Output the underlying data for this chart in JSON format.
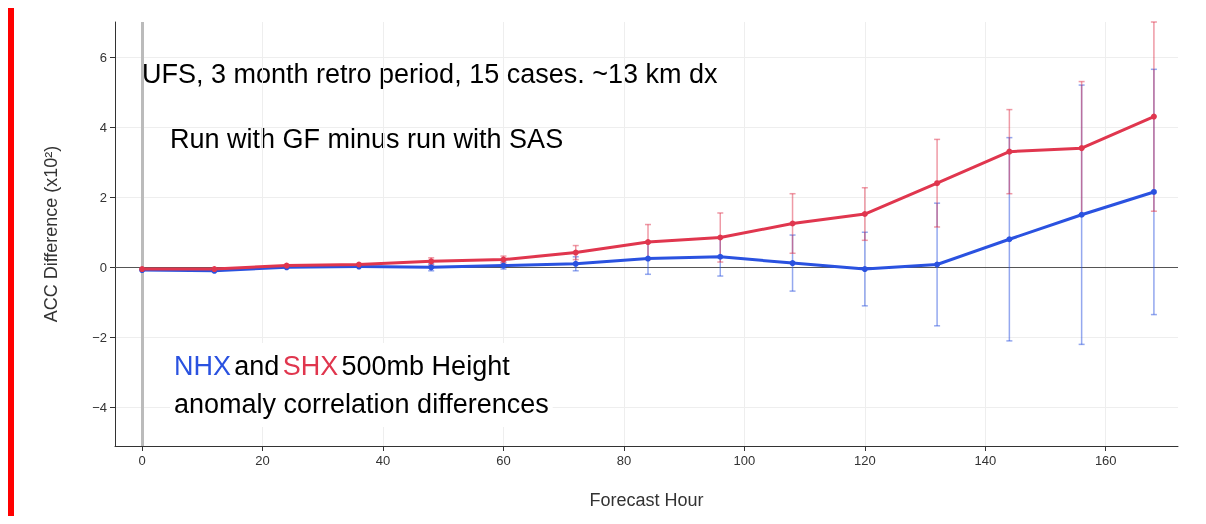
{
  "chart_data": {
    "type": "line",
    "xlabel": "Forecast Hour",
    "ylabel": "ACC Difference (x10²)",
    "x": [
      0,
      12,
      24,
      36,
      48,
      60,
      72,
      84,
      96,
      108,
      120,
      132,
      144,
      156,
      168
    ],
    "series": [
      {
        "name": "NHX",
        "color": "#2a52e0",
        "values": [
          -0.08,
          -0.1,
          0,
          0.02,
          0,
          0.05,
          0.1,
          0.25,
          0.3,
          0.12,
          -0.05,
          0.08,
          0.8,
          1.5,
          2.15
        ],
        "errors": [
          null,
          null,
          null,
          null,
          0.1,
          0.1,
          0.2,
          0.45,
          0.55,
          0.8,
          1.05,
          1.75,
          2.9,
          3.7,
          3.5
        ]
      },
      {
        "name": "SHX",
        "color": "#e0364e",
        "values": [
          -0.05,
          -0.05,
          0.05,
          0.08,
          0.17,
          0.22,
          0.42,
          0.72,
          0.85,
          1.25,
          1.52,
          2.4,
          3.3,
          3.4,
          4.3
        ],
        "errors": [
          null,
          null,
          null,
          null,
          0.1,
          0.1,
          0.2,
          0.5,
          0.7,
          0.85,
          0.75,
          1.25,
          1.2,
          1.9,
          2.7
        ]
      }
    ],
    "xlim": [
      -4.5,
      172
    ],
    "ylim": [
      -5.1,
      7
    ],
    "xticks": [
      0,
      20,
      40,
      60,
      80,
      100,
      120,
      140,
      160
    ],
    "yticks": [
      -4,
      -2,
      0,
      2,
      4,
      6
    ],
    "grid": true,
    "marker": "circle",
    "line_style": "solid",
    "legend": false,
    "ref_lines": [
      {
        "axis": "y",
        "value": 0,
        "color": "#555555"
      },
      {
        "axis": "x",
        "value": 0,
        "color": "#bbbbbb"
      }
    ],
    "annotations": [
      "UFS, 3 month retro period, 15 cases. ~13 km dx",
      "Run with GF minus run with SAS",
      "and",
      "500mb Height\nanomaly correlation differences"
    ]
  }
}
